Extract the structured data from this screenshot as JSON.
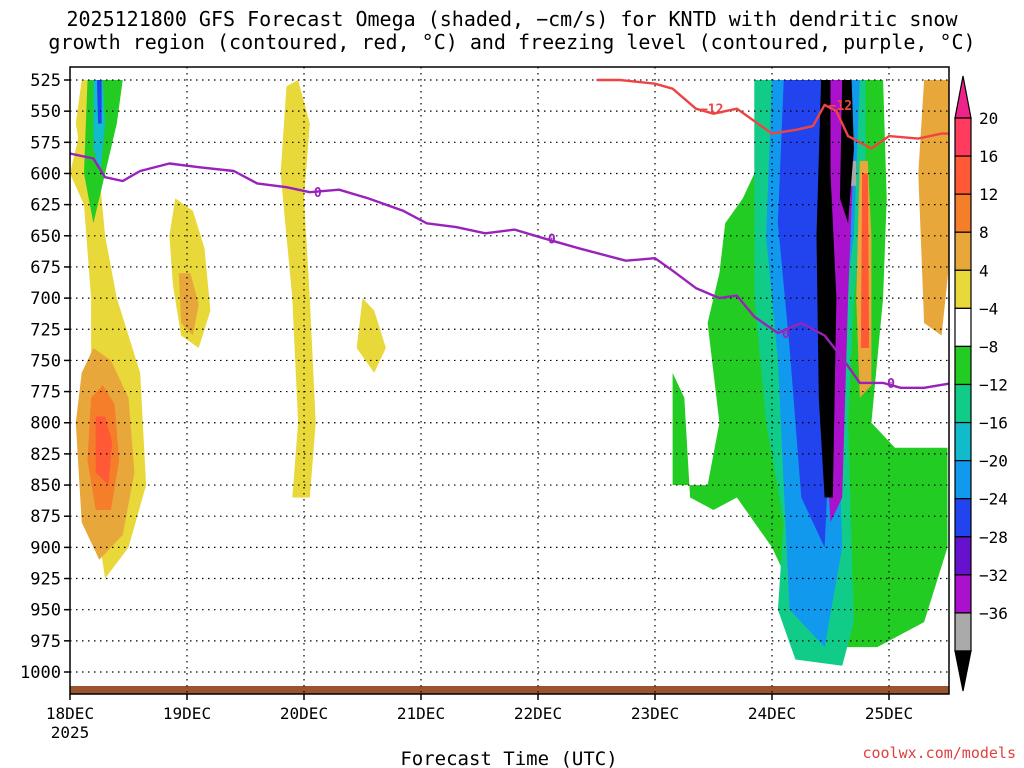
{
  "title": {
    "line1": "2025121800 GFS Forecast Omega (shaded, −cm/s) for KNTD with dendritic snow",
    "line2": "growth region (contoured, red, °C) and freezing level (contoured, purple, °C)"
  },
  "credit": "coolwx.com/models",
  "chart_data": {
    "type": "heatmap",
    "title": "2025121800 GFS Forecast Omega (shaded, −cm/s) for KNTD with dendritic snow growth region (contoured, red, °C) and freezing level (contoured, purple, °C)",
    "xlabel": "Forecast Time (UTC)",
    "ylabel": "",
    "x_unit": "days from 18DEC 00Z",
    "xlim": [
      0,
      7.55
    ],
    "ylim": [
      525,
      1012
    ],
    "x_ticks": [
      {
        "value": 0,
        "label": "18DEC",
        "sublabel": "2025"
      },
      {
        "value": 1,
        "label": "19DEC"
      },
      {
        "value": 2,
        "label": "20DEC"
      },
      {
        "value": 3,
        "label": "21DEC"
      },
      {
        "value": 4,
        "label": "22DEC"
      },
      {
        "value": 5,
        "label": "23DEC"
      },
      {
        "value": 6,
        "label": "24DEC"
      },
      {
        "value": 7,
        "label": "25DEC"
      }
    ],
    "y_ticks": [
      525,
      550,
      575,
      600,
      625,
      650,
      675,
      700,
      725,
      750,
      775,
      800,
      825,
      850,
      875,
      900,
      925,
      950,
      975,
      1000
    ],
    "grid": "dotted",
    "colorbar": {
      "labels": [
        "20",
        "16",
        "12",
        "8",
        "4",
        "−4",
        "−8",
        "−12",
        "−16",
        "−20",
        "−24",
        "−28",
        "−32",
        "−36"
      ],
      "colors": [
        "#ff3b5e",
        "#ff5a35",
        "#f47e2a",
        "#e8a73a",
        "#e8d83a",
        "#ffffff",
        "#22cc22",
        "#11cc88",
        "#11bbcc",
        "#1199ee",
        "#2244ee",
        "#6611cc",
        "#aa11cc",
        "#aaaaaa",
        "#000000"
      ],
      "top_arrow_color": "#ee2288",
      "bottom_arrow_color": "#000000"
    },
    "omega_regions": [
      {
        "level": 4,
        "color": "#e8d83a",
        "polygon": [
          [
            0.0,
            600
          ],
          [
            0.12,
            625
          ],
          [
            0.18,
            700
          ],
          [
            0.18,
            850
          ],
          [
            0.3,
            925
          ],
          [
            0.5,
            900
          ],
          [
            0.65,
            850
          ],
          [
            0.6,
            760
          ],
          [
            0.4,
            700
          ],
          [
            0.3,
            650
          ],
          [
            0.25,
            600
          ],
          [
            0.1,
            560
          ]
        ]
      },
      {
        "level": 8,
        "color": "#e8a73a",
        "polygon": [
          [
            0.1,
            760
          ],
          [
            0.05,
            800
          ],
          [
            0.1,
            880
          ],
          [
            0.25,
            910
          ],
          [
            0.45,
            890
          ],
          [
            0.55,
            840
          ],
          [
            0.5,
            780
          ],
          [
            0.35,
            750
          ],
          [
            0.2,
            740
          ]
        ]
      },
      {
        "level": 12,
        "color": "#f47e2a",
        "polygon": [
          [
            0.18,
            780
          ],
          [
            0.15,
            830
          ],
          [
            0.22,
            870
          ],
          [
            0.35,
            870
          ],
          [
            0.42,
            830
          ],
          [
            0.38,
            785
          ],
          [
            0.28,
            770
          ]
        ]
      },
      {
        "level": 16,
        "color": "#ff5a35",
        "polygon": [
          [
            0.22,
            795
          ],
          [
            0.22,
            840
          ],
          [
            0.33,
            850
          ],
          [
            0.36,
            815
          ],
          [
            0.3,
            795
          ]
        ]
      },
      {
        "level": 4,
        "color": "#e8d83a",
        "polygon": [
          [
            0.9,
            620
          ],
          [
            0.85,
            650
          ],
          [
            0.88,
            690
          ],
          [
            0.95,
            730
          ],
          [
            1.1,
            740
          ],
          [
            1.2,
            710
          ],
          [
            1.15,
            660
          ],
          [
            1.05,
            630
          ]
        ]
      },
      {
        "level": 8,
        "color": "#e8a73a",
        "polygon": [
          [
            0.93,
            680
          ],
          [
            0.95,
            720
          ],
          [
            1.05,
            730
          ],
          [
            1.1,
            705
          ],
          [
            1.03,
            680
          ]
        ]
      },
      {
        "level": 4,
        "color": "#e8d83a",
        "polygon": [
          [
            1.85,
            530
          ],
          [
            1.8,
            600
          ],
          [
            1.9,
            700
          ],
          [
            1.95,
            800
          ],
          [
            1.9,
            860
          ],
          [
            2.05,
            860
          ],
          [
            2.1,
            800
          ],
          [
            2.05,
            700
          ],
          [
            2.0,
            620
          ],
          [
            2.05,
            560
          ],
          [
            1.95,
            525
          ]
        ]
      },
      {
        "level": 4,
        "color": "#e8d83a",
        "polygon": [
          [
            2.5,
            700
          ],
          [
            2.45,
            740
          ],
          [
            2.6,
            760
          ],
          [
            2.7,
            740
          ],
          [
            2.6,
            710
          ]
        ]
      },
      {
        "level": 4,
        "color": "#e8d83a",
        "polygon": [
          [
            0.1,
            525
          ],
          [
            0.05,
            560
          ],
          [
            0.12,
            600
          ],
          [
            0.2,
            580
          ],
          [
            0.3,
            525
          ]
        ]
      },
      {
        "level": -4,
        "color": "#22cc22",
        "polygon": [
          [
            0.15,
            525
          ],
          [
            0.12,
            600
          ],
          [
            0.2,
            640
          ],
          [
            0.3,
            600
          ],
          [
            0.4,
            560
          ],
          [
            0.45,
            525
          ]
        ]
      },
      {
        "level": -12,
        "color": "#11bbcc",
        "polygon": [
          [
            0.2,
            525
          ],
          [
            0.2,
            580
          ],
          [
            0.26,
            600
          ],
          [
            0.3,
            560
          ],
          [
            0.28,
            525
          ]
        ]
      },
      {
        "level": -20,
        "color": "#2244ee",
        "polygon": [
          [
            0.23,
            525
          ],
          [
            0.24,
            560
          ],
          [
            0.27,
            560
          ],
          [
            0.27,
            525
          ]
        ]
      },
      {
        "level": -4,
        "color": "#22cc22",
        "polygon": [
          [
            5.15,
            760
          ],
          [
            5.15,
            850
          ],
          [
            5.45,
            850
          ],
          [
            5.55,
            800
          ],
          [
            5.45,
            720
          ],
          [
            5.55,
            680
          ],
          [
            5.6,
            640
          ],
          [
            5.75,
            620
          ],
          [
            5.85,
            600
          ],
          [
            5.85,
            525
          ],
          [
            6.95,
            525
          ],
          [
            6.98,
            620
          ],
          [
            6.95,
            700
          ],
          [
            6.85,
            800
          ],
          [
            7.05,
            820
          ],
          [
            7.5,
            820
          ],
          [
            7.5,
            900
          ],
          [
            7.3,
            960
          ],
          [
            6.9,
            980
          ],
          [
            6.5,
            980
          ],
          [
            6.2,
            940
          ],
          [
            6.0,
            900
          ],
          [
            5.7,
            860
          ],
          [
            5.5,
            870
          ],
          [
            5.3,
            860
          ],
          [
            5.25,
            780
          ]
        ]
      },
      {
        "level": -8,
        "color": "#11cc88",
        "polygon": [
          [
            5.85,
            525
          ],
          [
            5.85,
            700
          ],
          [
            5.95,
            800
          ],
          [
            6.1,
            880
          ],
          [
            6.05,
            950
          ],
          [
            6.2,
            990
          ],
          [
            6.6,
            995
          ],
          [
            6.7,
            960
          ],
          [
            6.65,
            800
          ],
          [
            6.7,
            700
          ],
          [
            6.8,
            600
          ],
          [
            6.8,
            525
          ]
        ]
      },
      {
        "level": -16,
        "color": "#1199ee",
        "polygon": [
          [
            6.0,
            525
          ],
          [
            5.95,
            650
          ],
          [
            6.05,
            750
          ],
          [
            6.1,
            850
          ],
          [
            6.15,
            950
          ],
          [
            6.45,
            980
          ],
          [
            6.6,
            900
          ],
          [
            6.55,
            750
          ],
          [
            6.7,
            650
          ],
          [
            6.75,
            525
          ]
        ]
      },
      {
        "level": -20,
        "color": "#2244ee",
        "polygon": [
          [
            6.1,
            525
          ],
          [
            6.05,
            640
          ],
          [
            6.15,
            740
          ],
          [
            6.25,
            860
          ],
          [
            6.45,
            900
          ],
          [
            6.5,
            800
          ],
          [
            6.45,
            700
          ],
          [
            6.5,
            600
          ],
          [
            6.55,
            525
          ]
        ]
      },
      {
        "level": -28,
        "color": "#aa11cc",
        "polygon": [
          [
            6.45,
            525
          ],
          [
            6.4,
            650
          ],
          [
            6.45,
            800
          ],
          [
            6.5,
            880
          ],
          [
            6.6,
            860
          ],
          [
            6.65,
            700
          ],
          [
            6.7,
            580
          ],
          [
            6.65,
            525
          ]
        ]
      },
      {
        "level": -32,
        "color": "#aaaaaa",
        "polygon": [
          [
            6.62,
            590
          ],
          [
            6.62,
            610
          ],
          [
            6.72,
            610
          ],
          [
            6.72,
            590
          ]
        ]
      },
      {
        "level": -36,
        "color": "#000000",
        "polygon": [
          [
            6.42,
            525
          ],
          [
            6.38,
            650
          ],
          [
            6.4,
            780
          ],
          [
            6.45,
            860
          ],
          [
            6.52,
            860
          ],
          [
            6.55,
            700
          ],
          [
            6.5,
            600
          ],
          [
            6.5,
            525
          ]
        ]
      },
      {
        "level": -36,
        "color": "#000000",
        "polygon": [
          [
            6.6,
            525
          ],
          [
            6.58,
            620
          ],
          [
            6.65,
            640
          ],
          [
            6.7,
            580
          ],
          [
            6.68,
            525
          ]
        ]
      },
      {
        "level": 8,
        "color": "#e8a73a",
        "polygon": [
          [
            6.75,
            590
          ],
          [
            6.72,
            700
          ],
          [
            6.75,
            780
          ],
          [
            6.85,
            770
          ],
          [
            6.85,
            650
          ],
          [
            6.82,
            590
          ]
        ]
      },
      {
        "level": 16,
        "color": "#ff5a35",
        "polygon": [
          [
            6.77,
            600
          ],
          [
            6.76,
            740
          ],
          [
            6.83,
            740
          ],
          [
            6.82,
            600
          ]
        ]
      },
      {
        "level": 8,
        "color": "#e8a73a",
        "polygon": [
          [
            7.3,
            525
          ],
          [
            7.25,
            600
          ],
          [
            7.3,
            720
          ],
          [
            7.45,
            730
          ],
          [
            7.55,
            640
          ],
          [
            7.55,
            525
          ]
        ]
      }
    ],
    "freezing_level_0C": {
      "label": "0",
      "points": [
        [
          0.0,
          584
        ],
        [
          0.2,
          588
        ],
        [
          0.3,
          603
        ],
        [
          0.45,
          606
        ],
        [
          0.6,
          598
        ],
        [
          0.85,
          592
        ],
        [
          1.1,
          595
        ],
        [
          1.4,
          598
        ],
        [
          1.6,
          608
        ],
        [
          1.85,
          611
        ],
        [
          2.05,
          615
        ],
        [
          2.3,
          613
        ],
        [
          2.55,
          620
        ],
        [
          2.85,
          630
        ],
        [
          3.05,
          640
        ],
        [
          3.3,
          643
        ],
        [
          3.55,
          648
        ],
        [
          3.8,
          645
        ],
        [
          4.05,
          652
        ],
        [
          4.35,
          660
        ],
        [
          4.75,
          670
        ],
        [
          5.0,
          668
        ],
        [
          5.15,
          678
        ],
        [
          5.35,
          692
        ],
        [
          5.55,
          700
        ],
        [
          5.7,
          698
        ],
        [
          5.85,
          715
        ],
        [
          6.05,
          728
        ],
        [
          6.25,
          720
        ],
        [
          6.45,
          730
        ],
        [
          6.6,
          748
        ],
        [
          6.75,
          768
        ],
        [
          6.95,
          768
        ],
        [
          7.1,
          772
        ],
        [
          7.3,
          772
        ],
        [
          7.55,
          768
        ]
      ]
    },
    "dgz_minus12C": {
      "label": "−12",
      "points": [
        [
          4.5,
          525
        ],
        [
          4.7,
          525
        ],
        [
          5.0,
          528
        ],
        [
          5.15,
          532
        ],
        [
          5.25,
          540
        ],
        [
          5.35,
          548
        ],
        [
          5.5,
          552
        ],
        [
          5.7,
          548
        ],
        [
          5.85,
          558
        ],
        [
          6.0,
          568
        ],
        [
          6.2,
          565
        ],
        [
          6.35,
          562
        ],
        [
          6.45,
          545
        ],
        [
          6.55,
          550
        ],
        [
          6.65,
          570
        ],
        [
          6.85,
          580
        ],
        [
          7.0,
          570
        ],
        [
          7.25,
          572
        ],
        [
          7.45,
          568
        ],
        [
          7.55,
          568
        ]
      ]
    }
  }
}
